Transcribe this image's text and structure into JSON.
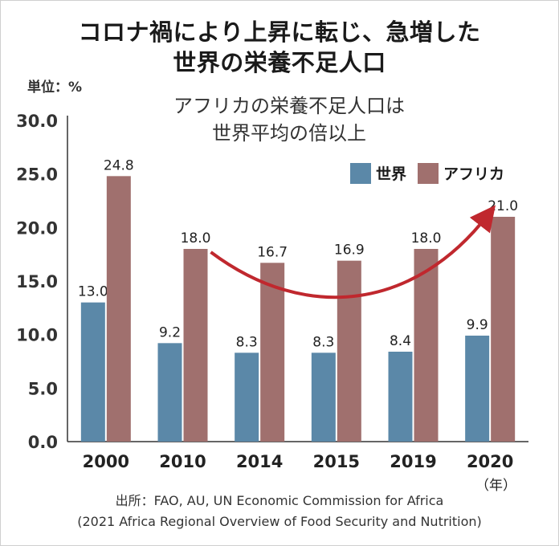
{
  "header": {
    "title_line1": "コロナ禍により上昇に転じ、急増した",
    "title_line2": "世界の栄養不足人口",
    "unit_label": "単位：%",
    "annotation_line1": "アフリカの栄養不足人口は",
    "annotation_line2": "世界平均の倍以上",
    "x_unit": "（年）",
    "source_line1": "出所：FAO, AU, UN Economic Commission for Africa",
    "source_line2": "(2021 Africa Regional Overview of Food Security and Nutrition)"
  },
  "chart_data": {
    "type": "bar",
    "categories": [
      "2000",
      "2010",
      "2014",
      "2015",
      "2019",
      "2020"
    ],
    "series": [
      {
        "name": "世界",
        "values": [
          13.0,
          9.2,
          8.3,
          8.3,
          8.4,
          9.9
        ],
        "color": "#5b88a8"
      },
      {
        "name": "アフリカ",
        "values": [
          24.8,
          18.0,
          16.7,
          16.9,
          18.0,
          21.0
        ],
        "color": "#a0706e"
      }
    ],
    "title": "コロナ禍により上昇に転じ、急増した 世界の栄養不足人口",
    "ylabel": "単位：%",
    "ylim": [
      0,
      30
    ],
    "yticks": [
      "0.0",
      "5.0",
      "10.0",
      "15.0",
      "20.0",
      "25.0",
      "30.0"
    ],
    "grid": false,
    "legend": "top-right",
    "arrow_color": "#c0282e"
  }
}
